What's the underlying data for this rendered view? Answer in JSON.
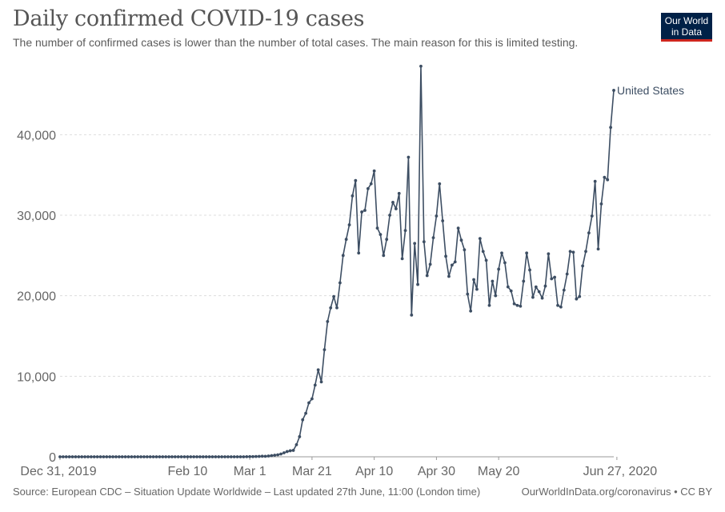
{
  "header": {
    "title": "Daily confirmed COVID-19 cases",
    "subtitle": "The number of confirmed cases is lower than the number of total cases. The main reason for this is limited testing."
  },
  "logo": {
    "line1": "Our World",
    "line2": "in Data"
  },
  "footer": {
    "source": "Source: European CDC – Situation Update Worldwide – Last updated 27th June, 11:00 (London time)",
    "link": "OurWorldInData.org/coronavirus • CC BY"
  },
  "colors": {
    "series": "#3d4e63",
    "grid": "#dddddd",
    "logo_bg": "#002147",
    "logo_accent": "#ce261e"
  },
  "chart_data": {
    "type": "line",
    "title": "Daily confirmed COVID-19 cases",
    "xlabel": "",
    "ylabel": "",
    "x_start": "Dec 31, 2019",
    "x_end": "Jun 27, 2020",
    "x_tick_labels": [
      "Dec 31, 2019",
      "Feb 10",
      "Mar 1",
      "Mar 21",
      "Apr 10",
      "Apr 30",
      "May 20",
      "Jun 27, 2020"
    ],
    "x_tick_day_index": [
      0,
      41,
      61,
      81,
      101,
      121,
      141,
      179
    ],
    "y_tick_labels": [
      "0",
      "10,000",
      "20,000",
      "30,000",
      "40,000"
    ],
    "y_tick_values": [
      0,
      10000,
      20000,
      30000,
      40000
    ],
    "ylim": [
      0,
      48500
    ],
    "grid": "horizontal dashed",
    "series": [
      {
        "name": "United States",
        "values": [
          0,
          0,
          0,
          0,
          0,
          0,
          0,
          0,
          0,
          0,
          0,
          0,
          0,
          0,
          0,
          0,
          0,
          0,
          0,
          0,
          0,
          1,
          0,
          0,
          0,
          0,
          0,
          0,
          0,
          0,
          1,
          1,
          3,
          0,
          0,
          0,
          1,
          0,
          0,
          0,
          0,
          0,
          0,
          1,
          0,
          0,
          0,
          0,
          0,
          0,
          0,
          1,
          0,
          0,
          0,
          0,
          0,
          0,
          3,
          0,
          14,
          20,
          20,
          36,
          50,
          70,
          60,
          100,
          150,
          200,
          250,
          350,
          500,
          650,
          750,
          800,
          1500,
          2500,
          4600,
          5400,
          6700,
          7200,
          8900,
          10800,
          9300,
          13300,
          16800,
          18500,
          19900,
          18500,
          21600,
          25000,
          27000,
          28800,
          32400,
          34300,
          25300,
          30400,
          30600,
          33300,
          33900,
          35500,
          28400,
          27600,
          25000,
          27000,
          30000,
          31600,
          30800,
          32700,
          24600,
          28100,
          37200,
          17600,
          26500,
          21400,
          48500,
          26700,
          22500,
          23900,
          27200,
          29900,
          33900,
          29300,
          24900,
          22400,
          23800,
          24200,
          28400,
          26900,
          25700,
          20200,
          18100,
          22000,
          20800,
          27100,
          25500,
          24400,
          18800,
          21800,
          20000,
          23300,
          25300,
          24100,
          21100,
          20600,
          19000,
          18800,
          18700,
          21800,
          25300,
          23200,
          19800,
          21100,
          20500,
          19700,
          21200,
          25200,
          22100,
          22300,
          18800,
          18600,
          20700,
          22700,
          25500,
          25400,
          19600,
          19900,
          23700,
          25500,
          27800,
          29900,
          34200,
          25800,
          31400,
          34700,
          34400,
          40900,
          45500
        ]
      }
    ]
  }
}
